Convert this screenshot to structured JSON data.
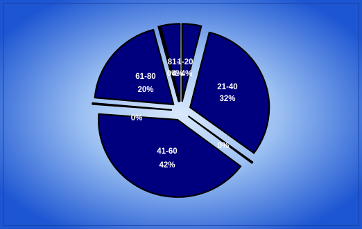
{
  "chart_data": {
    "type": "pie",
    "exploded": true,
    "slices": [
      {
        "category": "1-20",
        "percent_label": "4%",
        "value": 4
      },
      {
        "category": "21-40",
        "percent_label": "32%",
        "value": 32
      },
      {
        "category": "",
        "percent_label": "0%",
        "value": 0
      },
      {
        "category": "41-60",
        "percent_label": "42%",
        "value": 42
      },
      {
        "category": "",
        "percent_label": "0%",
        "value": 0
      },
      {
        "category": "61-80",
        "percent_label": "20%",
        "value": 20
      },
      {
        "category": "81-",
        "percent_label": "0%",
        "value": 0
      },
      {
        "category": "",
        "percent_label": "4%",
        "value": 4
      }
    ],
    "legend": "none"
  },
  "colors": {
    "slice_fill": "#00007e",
    "slice_stroke": "#000000",
    "label_text": "#ffffff",
    "background_center": "#d6e6fb",
    "background_edge": "#1e5ad4"
  }
}
